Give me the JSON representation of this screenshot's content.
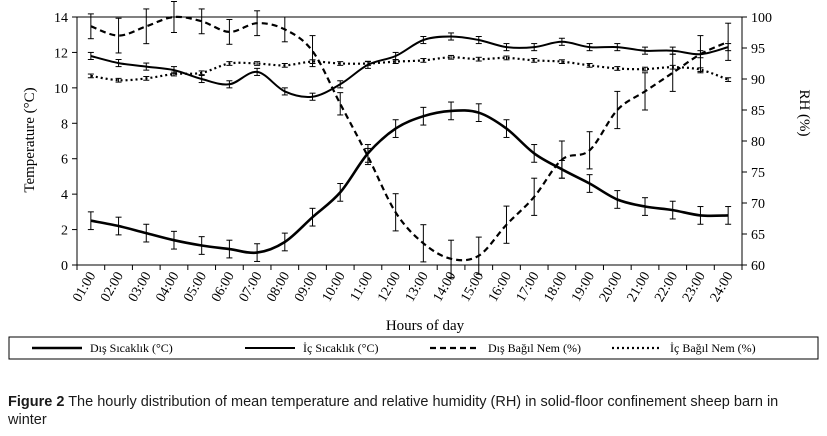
{
  "figure": {
    "caption_label": "Figure 2",
    "caption_text": "The hourly distribution of mean temperature and relative humidity (RH) in solid-floor confinement sheep barn in winter"
  },
  "chart_data": {
    "type": "line",
    "title": "",
    "xlabel": "Hours of day",
    "ylabel": "Temperature (°C)",
    "y2label": "RH (%)",
    "ylim": [
      0,
      14
    ],
    "y2lim": [
      60,
      100
    ],
    "yticks": [
      0,
      2,
      4,
      6,
      8,
      10,
      12,
      14
    ],
    "y2ticks": [
      60,
      65,
      70,
      75,
      80,
      85,
      90,
      95,
      100
    ],
    "categories": [
      "01:00",
      "02:00",
      "03:00",
      "04:00",
      "05:00",
      "06:00",
      "07:00",
      "08:00",
      "09:00",
      "10:00",
      "11:00",
      "12:00",
      "13:00",
      "14:00",
      "15:00",
      "16:00",
      "17:00",
      "18:00",
      "19:00",
      "20:00",
      "21:00",
      "22:00",
      "23:00",
      "24:00"
    ],
    "legend_position": "bottom",
    "series": [
      {
        "name": "Dış Sıcaklık (°C)",
        "axis": "left",
        "style": "solid-thick",
        "values": [
          2.5,
          2.2,
          1.8,
          1.4,
          1.1,
          0.9,
          0.7,
          1.3,
          2.7,
          4.1,
          6.3,
          7.7,
          8.4,
          8.7,
          8.6,
          7.7,
          6.3,
          5.4,
          4.6,
          3.7,
          3.3,
          3.1,
          2.8,
          2.8
        ],
        "errors": [
          0.5,
          0.5,
          0.5,
          0.5,
          0.5,
          0.5,
          0.5,
          0.5,
          0.5,
          0.5,
          0.5,
          0.5,
          0.5,
          0.5,
          0.5,
          0.5,
          0.5,
          0.5,
          0.5,
          0.5,
          0.5,
          0.5,
          0.5,
          0.5
        ]
      },
      {
        "name": "İç Sıcaklık (°C)",
        "axis": "left",
        "style": "solid",
        "values": [
          11.8,
          11.4,
          11.2,
          11.0,
          10.5,
          10.2,
          10.9,
          9.8,
          9.5,
          10.2,
          11.3,
          11.8,
          12.7,
          12.9,
          12.7,
          12.3,
          12.3,
          12.6,
          12.3,
          12.3,
          12.1,
          12.1,
          11.9,
          12.3
        ],
        "errors": [
          0.2,
          0.2,
          0.2,
          0.2,
          0.2,
          0.2,
          0.2,
          0.2,
          0.2,
          0.2,
          0.2,
          0.2,
          0.2,
          0.2,
          0.2,
          0.2,
          0.2,
          0.2,
          0.2,
          0.2,
          0.2,
          0.2,
          0.2,
          0.2
        ]
      },
      {
        "name": "Dış Bağıl Nem (%)",
        "axis": "right",
        "style": "dashed",
        "values": [
          98.5,
          97.0,
          98.5,
          100.0,
          99.3,
          97.6,
          99.0,
          98.0,
          94.5,
          86.0,
          77.5,
          68.5,
          63.5,
          61.0,
          61.5,
          66.5,
          71.0,
          77.0,
          78.5,
          85.0,
          88.0,
          91.0,
          94.0,
          96.0
        ],
        "errors": [
          2.0,
          2.8,
          2.8,
          2.5,
          2.0,
          2.0,
          2.0,
          2.0,
          2.5,
          1.8,
          1.3,
          3.0,
          3.0,
          3.0,
          3.0,
          3.0,
          3.0,
          3.0,
          3.0,
          3.0,
          3.0,
          3.0,
          3.0,
          3.0
        ]
      },
      {
        "name": "İç Bağıl Nem (%)",
        "axis": "right",
        "style": "dotted",
        "values": [
          90.5,
          89.8,
          90.1,
          90.8,
          91.0,
          92.5,
          92.5,
          92.2,
          92.8,
          92.5,
          92.5,
          92.8,
          93.0,
          93.5,
          93.2,
          93.4,
          93.0,
          92.8,
          92.2,
          91.7,
          91.6,
          91.9,
          91.5,
          89.9
        ],
        "errors": [
          0.3,
          0.3,
          0.3,
          0.3,
          0.3,
          0.3,
          0.3,
          0.3,
          0.3,
          0.3,
          0.3,
          0.3,
          0.3,
          0.3,
          0.3,
          0.3,
          0.3,
          0.3,
          0.3,
          0.3,
          0.3,
          0.3,
          0.3,
          0.3
        ]
      }
    ]
  }
}
